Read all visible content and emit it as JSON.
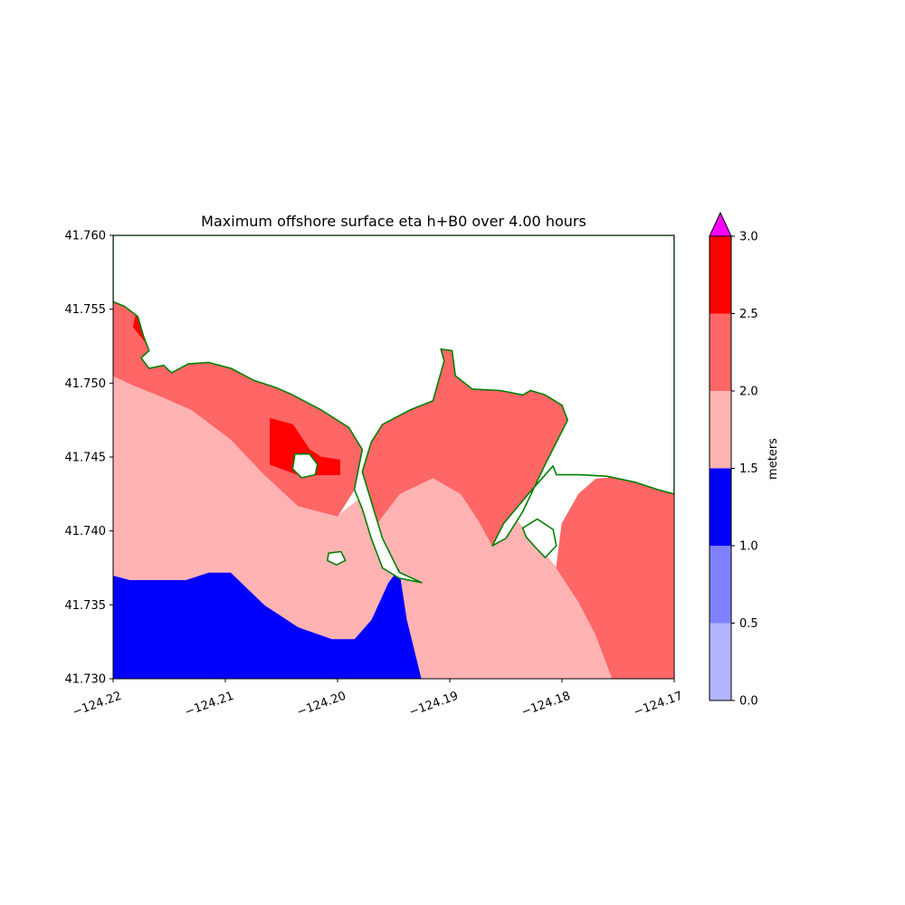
{
  "chart_data": {
    "type": "heatmap",
    "title": "Maximum offshore surface eta h+B0 over 4.00 hours",
    "xlabel": "",
    "ylabel": "",
    "xlim": [
      -124.22,
      -124.17
    ],
    "ylim": [
      41.73,
      41.76
    ],
    "x_tick_labels": [
      "−124.22",
      "−124.21",
      "−124.20",
      "−124.19",
      "−124.18",
      "−124.17"
    ],
    "x_tick_values": [
      -124.22,
      -124.21,
      -124.2,
      -124.19,
      -124.18,
      -124.17
    ],
    "y_tick_labels": [
      "41.730",
      "41.735",
      "41.740",
      "41.745",
      "41.750",
      "41.755",
      "41.760"
    ],
    "y_tick_values": [
      41.73,
      41.735,
      41.74,
      41.745,
      41.75,
      41.755,
      41.76
    ],
    "grid": false,
    "colorbar": {
      "label": "meters",
      "tick_labels": [
        "0.0",
        "0.5",
        "1.0",
        "1.5",
        "2.0",
        "2.5",
        "3.0"
      ],
      "tick_values": [
        0.0,
        0.5,
        1.0,
        1.5,
        2.0,
        2.5,
        3.0
      ],
      "levels": [
        {
          "range": [
            0.0,
            0.5
          ],
          "color": "#b3b3ff"
        },
        {
          "range": [
            0.5,
            1.0
          ],
          "color": "#8080ff"
        },
        {
          "range": [
            1.0,
            1.5
          ],
          "color": "#0000ff"
        },
        {
          "range": [
            1.5,
            2.0
          ],
          "color": "#ffb3b3"
        },
        {
          "range": [
            2.0,
            2.5
          ],
          "color": "#ff6666"
        },
        {
          "range": [
            2.5,
            3.0
          ],
          "color": "#ff0000"
        }
      ],
      "extend_max_color": "#ff00ff"
    },
    "shoreline_color": "#008000",
    "regions": [
      {
        "level": "1.0-1.5",
        "color": "#0000ff",
        "polygon": [
          [
            -124.22,
            41.73
          ],
          [
            -124.22,
            41.737
          ],
          [
            -124.2185,
            41.7367
          ],
          [
            -124.2135,
            41.7367
          ],
          [
            -124.2115,
            41.7372
          ],
          [
            -124.2095,
            41.7372
          ],
          [
            -124.2065,
            41.735
          ],
          [
            -124.2035,
            41.7335
          ],
          [
            -124.2005,
            41.7327
          ],
          [
            -124.1985,
            41.7327
          ],
          [
            -124.197,
            41.734
          ],
          [
            -124.1955,
            41.7365
          ],
          [
            -124.1945,
            41.7375
          ],
          [
            -124.1938,
            41.734
          ],
          [
            -124.1928,
            41.7312
          ],
          [
            -124.1925,
            41.73
          ]
        ]
      },
      {
        "level": "1.5-2.0",
        "color": "#ffb3b3",
        "polygon": [
          [
            -124.22,
            41.737
          ],
          [
            -124.22,
            41.7505
          ],
          [
            -124.218,
            41.7498
          ],
          [
            -124.216,
            41.7492
          ],
          [
            -124.213,
            41.7482
          ],
          [
            -124.2095,
            41.7462
          ],
          [
            -124.2065,
            41.7438
          ],
          [
            -124.2035,
            41.7417
          ],
          [
            -124.2,
            41.741
          ],
          [
            -124.198,
            41.7422
          ],
          [
            -124.1965,
            41.7405
          ],
          [
            -124.1945,
            41.7425
          ],
          [
            -124.192,
            41.7438
          ],
          [
            -124.189,
            41.7436
          ],
          [
            -124.1855,
            41.742
          ],
          [
            -124.183,
            41.7398
          ],
          [
            -124.1805,
            41.7375
          ],
          [
            -124.1785,
            41.7352
          ],
          [
            -124.177,
            41.733
          ],
          [
            -124.1755,
            41.73
          ],
          [
            -124.1925,
            41.73
          ],
          [
            -124.1938,
            41.734
          ],
          [
            -124.1945,
            41.7375
          ],
          [
            -124.1955,
            41.7365
          ],
          [
            -124.197,
            41.734
          ],
          [
            -124.1985,
            41.7327
          ],
          [
            -124.2005,
            41.7327
          ],
          [
            -124.2035,
            41.7335
          ],
          [
            -124.2065,
            41.735
          ],
          [
            -124.2095,
            41.7372
          ],
          [
            -124.2115,
            41.7372
          ],
          [
            -124.2135,
            41.7367
          ],
          [
            -124.2185,
            41.7367
          ]
        ]
      },
      {
        "level": "2.0-2.5",
        "color": "#ff6666",
        "polygon": [
          [
            -124.22,
            41.7505
          ],
          [
            -124.218,
            41.7498
          ],
          [
            -124.216,
            41.7492
          ],
          [
            -124.213,
            41.7482
          ],
          [
            -124.2095,
            41.7462
          ],
          [
            -124.2065,
            41.7438
          ],
          [
            -124.2035,
            41.7417
          ],
          [
            -124.2,
            41.741
          ],
          [
            -124.1985,
            41.7428
          ],
          [
            -124.1978,
            41.7455
          ],
          [
            -124.199,
            41.747
          ],
          [
            -124.2015,
            41.7482
          ],
          [
            -124.204,
            41.7492
          ],
          [
            -124.2055,
            41.7497
          ],
          [
            -124.2075,
            41.7502
          ],
          [
            -124.2095,
            41.751
          ],
          [
            -124.2115,
            41.7514
          ],
          [
            -124.2133,
            41.7513
          ],
          [
            -124.2148,
            41.7507
          ],
          [
            -124.2157,
            41.7512
          ],
          [
            -124.2165,
            41.7522
          ],
          [
            -124.2173,
            41.7532
          ],
          [
            -124.2178,
            41.7545
          ],
          [
            -124.219,
            41.7552
          ],
          [
            -124.22,
            41.7555
          ]
        ]
      },
      {
        "level": "2.0-2.5",
        "color": "#ff6666",
        "polygon": [
          [
            -124.1965,
            41.7405
          ],
          [
            -124.198,
            41.7432
          ],
          [
            -124.1975,
            41.746
          ],
          [
            -124.196,
            41.7472
          ],
          [
            -124.1935,
            41.7482
          ],
          [
            -124.1915,
            41.7488
          ],
          [
            -124.1905,
            41.7515
          ],
          [
            -124.1908,
            41.7523
          ],
          [
            -124.1898,
            41.7522
          ],
          [
            -124.1895,
            41.7505
          ],
          [
            -124.188,
            41.7496
          ],
          [
            -124.1855,
            41.7495
          ],
          [
            -124.1835,
            41.7492
          ],
          [
            -124.1828,
            41.7495
          ],
          [
            -124.1815,
            41.7492
          ],
          [
            -124.18,
            41.7485
          ],
          [
            -124.1795,
            41.7475
          ],
          [
            -124.1815,
            41.7445
          ],
          [
            -124.1835,
            41.7413
          ],
          [
            -124.185,
            41.7395
          ],
          [
            -124.1862,
            41.739
          ],
          [
            -124.1875,
            41.7408
          ],
          [
            -124.189,
            41.7425
          ],
          [
            -124.1915,
            41.7436
          ],
          [
            -124.1945,
            41.7425
          ]
        ]
      },
      {
        "level": "2.0-2.5",
        "color": "#ff6666",
        "polygon": [
          [
            -124.1805,
            41.7375
          ],
          [
            -124.18,
            41.7405
          ],
          [
            -124.1785,
            41.7425
          ],
          [
            -124.177,
            41.7435
          ],
          [
            -124.1745,
            41.7437
          ],
          [
            -124.1725,
            41.743
          ],
          [
            -124.17,
            41.7425
          ],
          [
            -124.17,
            41.73
          ],
          [
            -124.1755,
            41.73
          ],
          [
            -124.177,
            41.733
          ],
          [
            -124.1785,
            41.7352
          ]
        ]
      },
      {
        "level": "2.5-3.0",
        "color": "#ff0000",
        "polygon": [
          [
            -124.2165,
            41.7522
          ],
          [
            -124.2182,
            41.7538
          ],
          [
            -124.2178,
            41.7552
          ],
          [
            -124.2168,
            41.7555
          ],
          [
            -124.2155,
            41.7543
          ],
          [
            -124.2153,
            41.7528
          ]
        ]
      },
      {
        "level": "2.5-3.0",
        "color": "#ff0000",
        "polygon": [
          [
            -124.206,
            41.7476
          ],
          [
            -124.204,
            41.7472
          ],
          [
            -124.2025,
            41.7455
          ],
          [
            -124.2015,
            41.745
          ],
          [
            -124.1998,
            41.7448
          ],
          [
            -124.1998,
            41.7438
          ],
          [
            -124.2035,
            41.7438
          ],
          [
            -124.206,
            41.7445
          ]
        ]
      }
    ],
    "land": [
      {
        "polygon": [
          [
            -124.22,
            41.7555
          ],
          [
            -124.219,
            41.7552
          ],
          [
            -124.2178,
            41.7545
          ],
          [
            -124.2173,
            41.7532
          ],
          [
            -124.2168,
            41.7522
          ],
          [
            -124.2175,
            41.7517
          ],
          [
            -124.2168,
            41.751
          ],
          [
            -124.2155,
            41.7512
          ],
          [
            -124.2148,
            41.7507
          ],
          [
            -124.2133,
            41.7513
          ],
          [
            -124.2115,
            41.7514
          ],
          [
            -124.2095,
            41.751
          ],
          [
            -124.2075,
            41.7502
          ],
          [
            -124.2055,
            41.7497
          ],
          [
            -124.204,
            41.7492
          ],
          [
            -124.2015,
            41.7482
          ],
          [
            -124.199,
            41.747
          ],
          [
            -124.1978,
            41.7455
          ],
          [
            -124.1985,
            41.7428
          ],
          [
            -124.1978,
            41.7415
          ],
          [
            -124.197,
            41.7395
          ],
          [
            -124.196,
            41.7375
          ],
          [
            -124.1945,
            41.7368
          ],
          [
            -124.1925,
            41.7365
          ],
          [
            -124.1945,
            41.7372
          ],
          [
            -124.196,
            41.7395
          ],
          [
            -124.1978,
            41.744
          ],
          [
            -124.197,
            41.746
          ],
          [
            -124.196,
            41.7472
          ],
          [
            -124.1935,
            41.7482
          ],
          [
            -124.1915,
            41.7488
          ],
          [
            -124.1905,
            41.7515
          ],
          [
            -124.1908,
            41.7523
          ],
          [
            -124.1898,
            41.7522
          ],
          [
            -124.1895,
            41.7505
          ],
          [
            -124.188,
            41.7496
          ],
          [
            -124.1855,
            41.7495
          ],
          [
            -124.1835,
            41.7492
          ],
          [
            -124.1828,
            41.7495
          ],
          [
            -124.1815,
            41.7492
          ],
          [
            -124.18,
            41.7485
          ],
          [
            -124.1795,
            41.7475
          ],
          [
            -124.1815,
            41.7445
          ],
          [
            -124.1835,
            41.7413
          ],
          [
            -124.185,
            41.7395
          ],
          [
            -124.1862,
            41.739
          ],
          [
            -124.1852,
            41.7405
          ],
          [
            -124.183,
            41.7425
          ],
          [
            -124.1808,
            41.7444
          ],
          [
            -124.1805,
            41.7438
          ],
          [
            -124.1785,
            41.7438
          ],
          [
            -124.176,
            41.7437
          ],
          [
            -124.1735,
            41.7433
          ],
          [
            -124.1715,
            41.7428
          ],
          [
            -124.17,
            41.7425
          ],
          [
            -124.17,
            41.76
          ],
          [
            -124.22,
            41.76
          ]
        ]
      }
    ],
    "islands": [
      {
        "polygon": [
          [
            -124.2038,
            41.7452
          ],
          [
            -124.2025,
            41.7452
          ],
          [
            -124.2018,
            41.7445
          ],
          [
            -124.202,
            41.7438
          ],
          [
            -124.2032,
            41.7436
          ],
          [
            -124.204,
            41.7442
          ]
        ]
      },
      {
        "polygon": [
          [
            -124.2008,
            41.7385
          ],
          [
            -124.1997,
            41.7386
          ],
          [
            -124.1993,
            41.738
          ],
          [
            -124.2001,
            41.7377
          ],
          [
            -124.2009,
            41.738
          ]
        ]
      },
      {
        "polygon": [
          [
            -124.1815,
            41.7382
          ],
          [
            -124.1825,
            41.739
          ],
          [
            -124.1832,
            41.7396
          ],
          [
            -124.1835,
            41.7402
          ],
          [
            -124.1822,
            41.7408
          ],
          [
            -124.1808,
            41.7401
          ],
          [
            -124.1805,
            41.739
          ]
        ]
      }
    ]
  }
}
